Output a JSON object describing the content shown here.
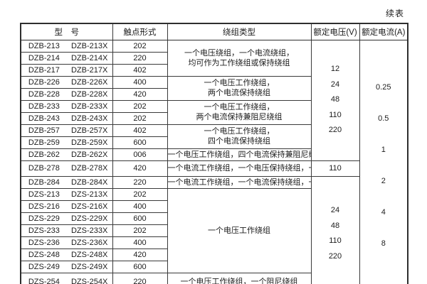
{
  "page": {
    "continued_label": "续表"
  },
  "table": {
    "headers": [
      "型　号",
      "触点形式",
      "绕组类型",
      "额定电压(V)",
      "额定电流(A)"
    ],
    "rows": [
      {
        "model": "DZB-213",
        "model_x": "DZB-213X",
        "contact": "202"
      },
      {
        "model": "DZB-214",
        "model_x": "DZB-214X",
        "contact": "220"
      },
      {
        "model": "DZB-217",
        "model_x": "DZB-217X",
        "contact": "402"
      },
      {
        "model": "DZB-226",
        "model_x": "DZB-226X",
        "contact": "400"
      },
      {
        "model": "DZB-228",
        "model_x": "DZB-228X",
        "contact": "420"
      },
      {
        "model": "DZB-233",
        "model_x": "DZB-233X",
        "contact": "202"
      },
      {
        "model": "DZB-243",
        "model_x": "DZB-243X",
        "contact": "202"
      },
      {
        "model": "DZB-257",
        "model_x": "DZB-257X",
        "contact": "402"
      },
      {
        "model": "DZB-259",
        "model_x": "DZB-259X",
        "contact": "600"
      },
      {
        "model": "DZB-262",
        "model_x": "DZB-262X",
        "contact": "006"
      },
      {
        "model": "DZB-278",
        "model_x": "DZB-278X",
        "contact": "420"
      },
      {
        "model": "DZB-284",
        "model_x": "DZB-284X",
        "contact": "220"
      },
      {
        "model": "DZS-213",
        "model_x": "DZS-213X",
        "contact": "202"
      },
      {
        "model": "DZS-216",
        "model_x": "DZS-216X",
        "contact": "400"
      },
      {
        "model": "DZS-229",
        "model_x": "DZS-229X",
        "contact": "600"
      },
      {
        "model": "DZS-233",
        "model_x": "DZS-233X",
        "contact": "202"
      },
      {
        "model": "DZS-236",
        "model_x": "DZS-236X",
        "contact": "400"
      },
      {
        "model": "DZS-248",
        "model_x": "DZS-248X",
        "contact": "420"
      },
      {
        "model": "DZS-249",
        "model_x": "DZS-249X",
        "contact": "600"
      },
      {
        "model": "DZS-254",
        "model_x": "DZS-254X",
        "contact": "220"
      }
    ],
    "winding_groups": [
      {
        "rows": 3,
        "lines": [
          "一个电压绕组，一个电流绕组，",
          "均可作为工作绕组或保持绕组"
        ]
      },
      {
        "rows": 2,
        "lines": [
          "一个电压工作绕组，",
          "两个电流保持绕组"
        ]
      },
      {
        "rows": 2,
        "lines": [
          "一个电压工作绕组，",
          "两个电流保持兼阻尼绕组"
        ]
      },
      {
        "rows": 2,
        "lines": [
          "一个电压工作绕组，",
          "四个电流保持绕组"
        ]
      },
      {
        "rows": 1,
        "lines": [
          "一个电压工作绕组，四个电流保持兼阻尼绕组"
        ]
      },
      {
        "rows": 1,
        "lines": [
          "一个电流工作绕组，一个电压保持绕组，一个阻尼绕组"
        ]
      },
      {
        "rows": 1,
        "lines": [
          "一个电流工作绕组，一个电流保持绕组，一个电压保持绕组"
        ]
      },
      {
        "rows": 7,
        "lines": [
          "一个电压工作绕组"
        ]
      },
      {
        "rows": 1,
        "lines": [
          "一个电压工作绕组，一个阻尼绕组"
        ]
      }
    ],
    "voltage_groups": [
      {
        "rows": 10,
        "values": [
          "12",
          "24",
          "48",
          "110",
          "220"
        ]
      },
      {
        "rows": 1,
        "values": [
          "110"
        ]
      },
      {
        "rows": 9,
        "values": [
          "24",
          "48",
          "110",
          "220"
        ]
      }
    ],
    "current_groups": [
      {
        "rows": 20,
        "values": [
          "0.25",
          "0.5",
          "1",
          "2",
          "4",
          "8"
        ]
      }
    ]
  }
}
